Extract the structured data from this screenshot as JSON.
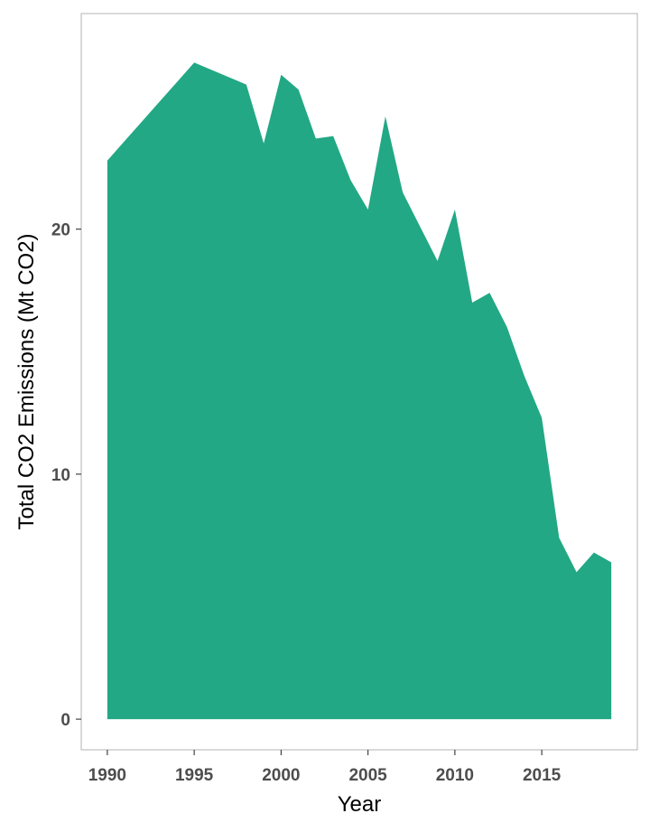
{
  "chart_data": {
    "type": "area",
    "title": "",
    "xlabel": "Year",
    "ylabel": "Total CO2 Emissions (Mt CO2)",
    "x": [
      1990,
      1991,
      1992,
      1993,
      1994,
      1995,
      1996,
      1997,
      1998,
      1999,
      2000,
      2001,
      2002,
      2003,
      2004,
      2005,
      2006,
      2007,
      2008,
      2009,
      2010,
      2011,
      2012,
      2013,
      2014,
      2015,
      2016,
      2017,
      2018,
      2019
    ],
    "series": [
      {
        "values": [
          22.8,
          23.6,
          24.4,
          25.2,
          26.0,
          26.8,
          26.5,
          26.2,
          25.9,
          23.5,
          26.3,
          25.7,
          23.7,
          23.8,
          22.0,
          20.8,
          24.6,
          21.5,
          20.1,
          18.7,
          20.8,
          17.0,
          17.4,
          16.0,
          14.0,
          12.3,
          7.4,
          6.0,
          6.8,
          6.4
        ],
        "color": "#22A884"
      }
    ],
    "xlim": [
      1988.5,
      2020.5
    ],
    "ylim": [
      -1.25,
      28.8
    ],
    "xticks": [
      "1990",
      "1995",
      "2000",
      "2005",
      "2010",
      "2015"
    ],
    "yticks": [
      "0",
      "10",
      "20"
    ],
    "grid": false,
    "legend": "none",
    "panel_border": true
  }
}
